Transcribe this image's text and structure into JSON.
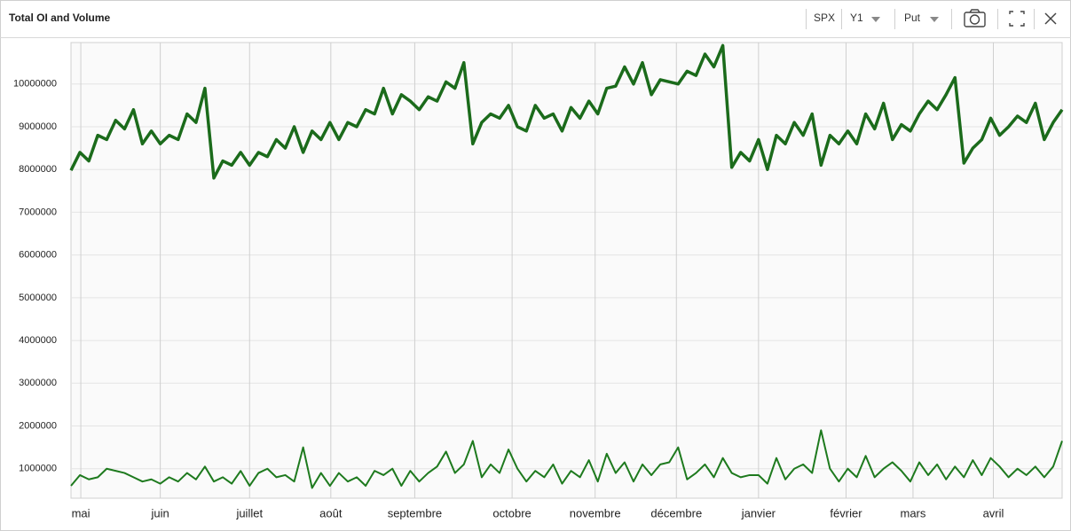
{
  "toolbar": {
    "symbol": "SPX",
    "axis": "Y1",
    "option": "Put"
  },
  "chart_data": {
    "type": "line",
    "title": "Total OI and Volume",
    "xlim": [
      0,
      111
    ],
    "xticks": [
      {
        "value": 1.1,
        "label": "mai"
      },
      {
        "value": 10,
        "label": "juin"
      },
      {
        "value": 20,
        "label": "juillet"
      },
      {
        "value": 29.1,
        "label": "août"
      },
      {
        "value": 38.5,
        "label": "septembre"
      },
      {
        "value": 49.4,
        "label": "octobre"
      },
      {
        "value": 58.7,
        "label": "novembre"
      },
      {
        "value": 67.8,
        "label": "décembre"
      },
      {
        "value": 77,
        "label": "janvier"
      },
      {
        "value": 86.8,
        "label": "février"
      },
      {
        "value": 94.3,
        "label": "mars"
      },
      {
        "value": 103.3,
        "label": "avril"
      }
    ],
    "ylim": [
      310000,
      10970000
    ],
    "yticks": [
      1000000,
      2000000,
      3000000,
      4000000,
      5000000,
      6000000,
      7000000,
      8000000,
      9000000,
      10000000
    ],
    "grid": true,
    "series": [
      {
        "color": "#1b6b1b",
        "values": [
          7980000,
          8400000,
          8200000,
          8800000,
          8700000,
          9150000,
          8950000,
          9400000,
          8600000,
          8900000,
          8600000,
          8800000,
          8700000,
          9300000,
          9100000,
          9900000,
          7800000,
          8200000,
          8100000,
          8400000,
          8100000,
          8400000,
          8300000,
          8700000,
          8500000,
          9000000,
          8400000,
          8900000,
          8700000,
          9100000,
          8700000,
          9100000,
          9000000,
          9400000,
          9300000,
          9900000,
          9300000,
          9750000,
          9600000,
          9400000,
          9700000,
          9600000,
          10050000,
          9900000,
          10500000,
          8600000,
          9100000,
          9300000,
          9200000,
          9500000,
          9000000,
          8900000,
          9500000,
          9200000,
          9300000,
          8900000,
          9450000,
          9200000,
          9600000,
          9300000,
          9900000,
          9950000,
          10400000,
          10000000,
          10500000,
          9750000,
          10100000,
          10050000,
          10000000,
          10300000,
          10200000,
          10700000,
          10400000,
          10900000,
          8050000,
          8400000,
          8200000,
          8700000,
          8000000,
          8800000,
          8600000,
          9100000,
          8800000,
          9300000,
          8100000,
          8800000,
          8600000,
          8900000,
          8600000,
          9300000,
          8950000,
          9550000,
          8700000,
          9050000,
          8900000,
          9300000,
          9600000,
          9400000,
          9750000,
          10150000,
          8150000,
          8500000,
          8700000,
          9200000,
          8800000,
          9000000,
          9250000,
          9100000,
          9550000,
          8700000,
          9100000,
          9400000
        ]
      },
      {
        "color": "#1e7a1e",
        "values": [
          600000,
          850000,
          750000,
          800000,
          1000000,
          950000,
          900000,
          800000,
          700000,
          750000,
          650000,
          800000,
          700000,
          900000,
          750000,
          1050000,
          700000,
          800000,
          650000,
          950000,
          600000,
          900000,
          1000000,
          800000,
          850000,
          700000,
          1500000,
          550000,
          900000,
          600000,
          900000,
          700000,
          800000,
          600000,
          950000,
          850000,
          1000000,
          600000,
          950000,
          700000,
          900000,
          1050000,
          1400000,
          900000,
          1100000,
          1650000,
          800000,
          1100000,
          900000,
          1450000,
          1000000,
          700000,
          950000,
          800000,
          1100000,
          650000,
          950000,
          800000,
          1200000,
          700000,
          1350000,
          900000,
          1150000,
          700000,
          1100000,
          850000,
          1100000,
          1150000,
          1500000,
          750000,
          900000,
          1100000,
          800000,
          1250000,
          900000,
          800000,
          850000,
          850000,
          650000,
          1250000,
          750000,
          1000000,
          1100000,
          900000,
          1900000,
          1000000,
          700000,
          1000000,
          800000,
          1300000,
          800000,
          1000000,
          1150000,
          950000,
          700000,
          1150000,
          850000,
          1100000,
          750000,
          1050000,
          800000,
          1200000,
          850000,
          1250000,
          1050000,
          800000,
          1000000,
          850000,
          1050000,
          800000,
          1050000,
          1650000
        ]
      }
    ]
  }
}
